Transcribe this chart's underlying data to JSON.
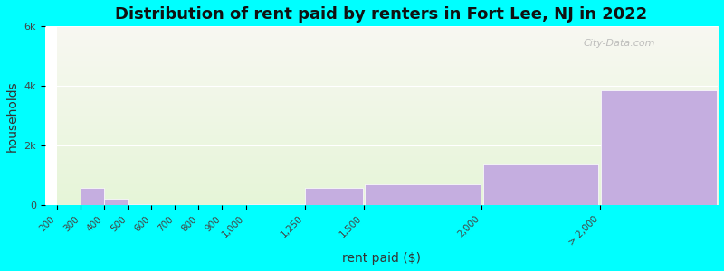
{
  "title": "Distribution of rent paid by renters in Fort Lee, NJ in 2022",
  "xlabel": "rent paid ($)",
  "ylabel": "households",
  "tick_labels": [
    "200",
    "300",
    "400",
    "500",
    "600",
    "700",
    "800",
    "900",
    "1,000",
    "1,250",
    "1,500",
    "2,000",
    "> 2,000"
  ],
  "left_edges": [
    200,
    300,
    400,
    500,
    600,
    700,
    800,
    900,
    1000,
    1250,
    1500,
    2000,
    2500
  ],
  "widths": [
    100,
    100,
    100,
    100,
    100,
    100,
    100,
    100,
    250,
    250,
    500,
    500,
    500
  ],
  "values": [
    10,
    580,
    230,
    30,
    10,
    20,
    10,
    10,
    30,
    600,
    720,
    1380,
    3850
  ],
  "bar_color": "#c5aee0",
  "bar_edge_color": "#ffffff",
  "background_color": "#00ffff",
  "plot_bg_color_top": "#f8f8f2",
  "plot_bg_color_bottom": "#e6f5d8",
  "ylim": [
    0,
    6000
  ],
  "xlim": [
    200,
    3000
  ],
  "ytick_labels": [
    "0",
    "2k",
    "4k",
    "6k"
  ],
  "ytick_values": [
    0,
    2000,
    4000,
    6000
  ],
  "tick_positions": [
    200,
    300,
    400,
    500,
    600,
    700,
    800,
    900,
    1000,
    1250,
    1500,
    2000,
    2500
  ],
  "title_fontsize": 13,
  "axis_label_fontsize": 10,
  "watermark": "City-Data.com"
}
